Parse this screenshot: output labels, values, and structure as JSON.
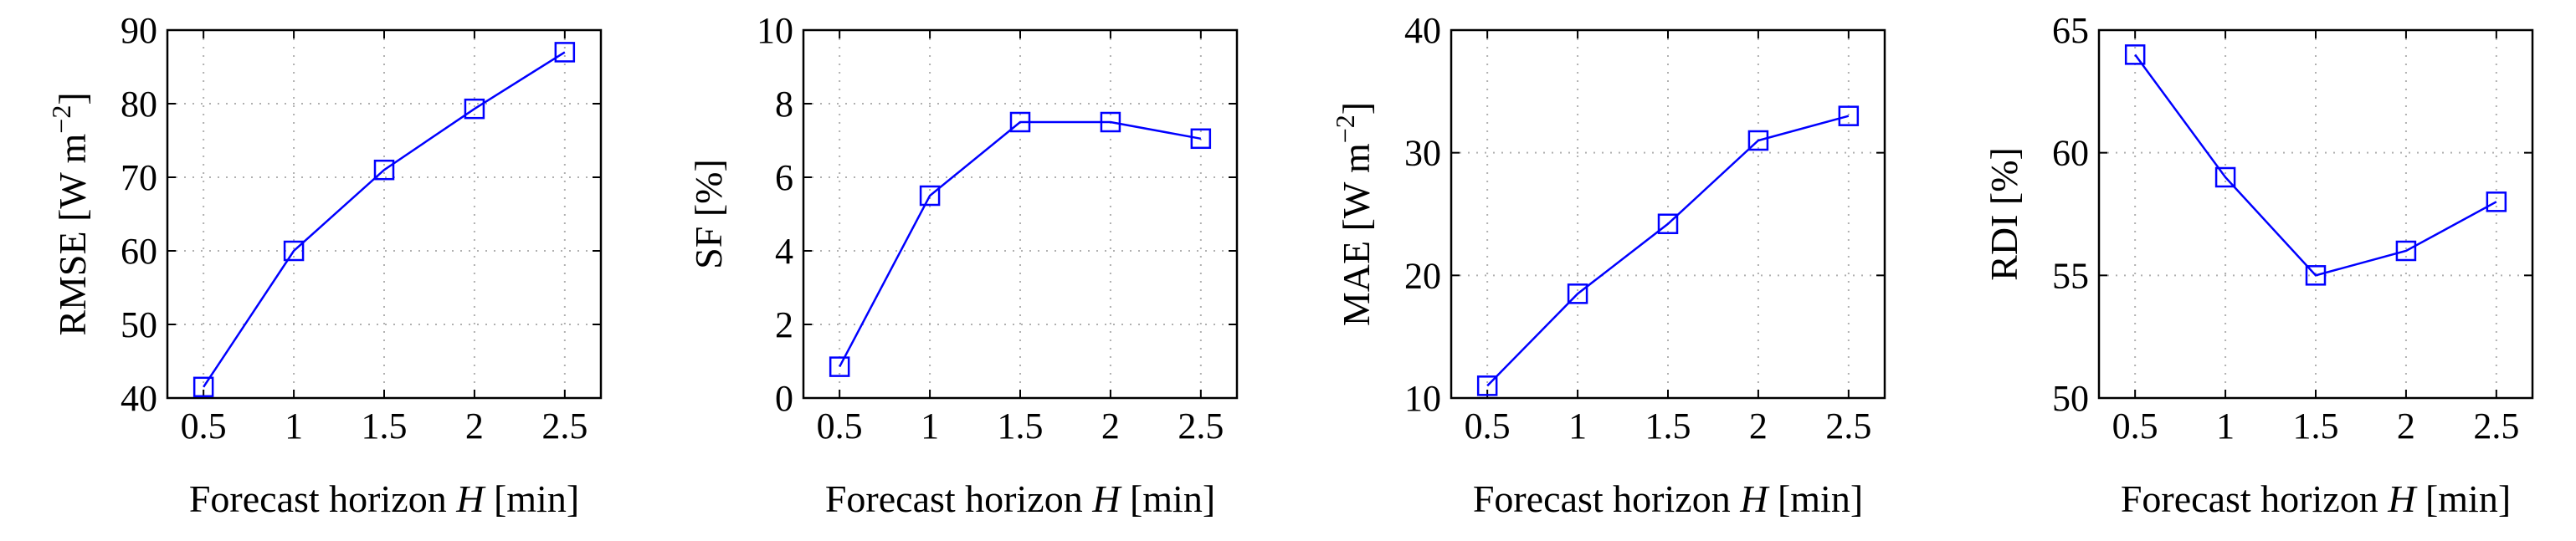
{
  "chart_data": [
    {
      "type": "line",
      "xlabel_text": "Forecast horizon ",
      "xlabel_var": "H",
      "xlabel_unit": " [min]",
      "ylabel": "RMSE [W m−2]",
      "ylabel_base": "RMSE [W m",
      "ylabel_sup": "−2",
      "ylabel_end": "]",
      "x": [
        0.5,
        1,
        1.5,
        2,
        2.5
      ],
      "x_tick_labels": [
        "0.5",
        "1",
        "1.5",
        "2",
        "2.5"
      ],
      "xlim": [
        0.3,
        2.7
      ],
      "ylim": [
        40,
        90
      ],
      "y_ticks": [
        40,
        50,
        60,
        70,
        80,
        90
      ],
      "y_tick_labels": [
        "40",
        "50",
        "60",
        "70",
        "80",
        "90"
      ],
      "grid": true,
      "series": [
        {
          "name": "RMSE",
          "color": "#0000ff",
          "marker": "square",
          "values": [
            41.5,
            60,
            71,
            79.3,
            87
          ]
        }
      ]
    },
    {
      "type": "line",
      "xlabel_text": "Forecast horizon ",
      "xlabel_var": "H",
      "xlabel_unit": " [min]",
      "ylabel": "SF [%]",
      "ylabel_base": "SF [%]",
      "ylabel_sup": "",
      "ylabel_end": "",
      "x": [
        0.5,
        1,
        1.5,
        2,
        2.5
      ],
      "x_tick_labels": [
        "0.5",
        "1",
        "1.5",
        "2",
        "2.5"
      ],
      "xlim": [
        0.3,
        2.7
      ],
      "ylim": [
        0,
        10
      ],
      "y_ticks": [
        0,
        2,
        4,
        6,
        8,
        10
      ],
      "y_tick_labels": [
        "0",
        "2",
        "4",
        "6",
        "8",
        "10"
      ],
      "grid": true,
      "series": [
        {
          "name": "SF",
          "color": "#0000ff",
          "marker": "square",
          "values": [
            0.85,
            5.5,
            7.5,
            7.5,
            7.05
          ]
        }
      ]
    },
    {
      "type": "line",
      "xlabel_text": "Forecast horizon ",
      "xlabel_var": "H",
      "xlabel_unit": " [min]",
      "ylabel": "MAE [W m−2]",
      "ylabel_base": "MAE [W m",
      "ylabel_sup": "−2",
      "ylabel_end": "]",
      "x": [
        0.5,
        1,
        1.5,
        2,
        2.5
      ],
      "x_tick_labels": [
        "0.5",
        "1",
        "1.5",
        "2",
        "2.5"
      ],
      "xlim": [
        0.3,
        2.7
      ],
      "ylim": [
        10,
        40
      ],
      "y_ticks": [
        10,
        20,
        30,
        40
      ],
      "y_tick_labels": [
        "10",
        "20",
        "30",
        "40"
      ],
      "grid": true,
      "series": [
        {
          "name": "MAE",
          "color": "#0000ff",
          "marker": "square",
          "values": [
            11,
            18.5,
            24.2,
            31,
            33
          ]
        }
      ]
    },
    {
      "type": "line",
      "xlabel_text": "Forecast horizon ",
      "xlabel_var": "H",
      "xlabel_unit": " [min]",
      "ylabel": "RDI [%]",
      "ylabel_base": "RDI [%]",
      "ylabel_sup": "",
      "ylabel_end": "",
      "x": [
        0.5,
        1,
        1.5,
        2,
        2.5
      ],
      "x_tick_labels": [
        "0.5",
        "1",
        "1.5",
        "2",
        "2.5"
      ],
      "xlim": [
        0.3,
        2.7
      ],
      "ylim": [
        50,
        65
      ],
      "y_ticks": [
        50,
        55,
        60,
        65
      ],
      "y_tick_labels": [
        "50",
        "55",
        "60",
        "65"
      ],
      "grid": true,
      "series": [
        {
          "name": "RDI",
          "color": "#0000ff",
          "marker": "square",
          "values": [
            64,
            59,
            55,
            56,
            58
          ]
        }
      ]
    }
  ]
}
